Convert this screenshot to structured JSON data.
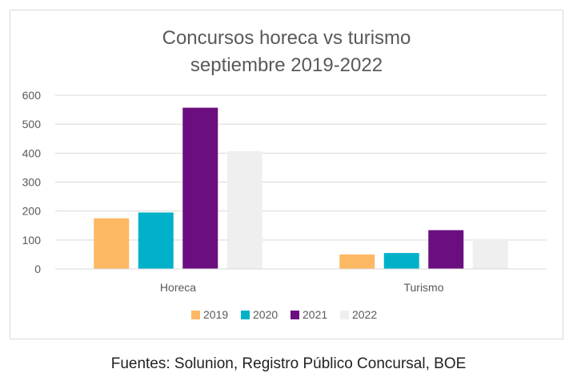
{
  "chart_data": {
    "type": "bar",
    "title": "Concursos horeca vs turismo",
    "subtitle": "septiembre 2019-2022",
    "categories": [
      "Horeca",
      "Turismo"
    ],
    "series": [
      {
        "name": "2019",
        "values": [
          175,
          50
        ],
        "color": "#FDB863"
      },
      {
        "name": "2020",
        "values": [
          195,
          55
        ],
        "color": "#00B1C9"
      },
      {
        "name": "2021",
        "values": [
          557,
          134
        ],
        "color": "#6B0F80"
      },
      {
        "name": "2022",
        "values": [
          407,
          104
        ],
        "color": "#EFEFEF"
      }
    ],
    "ylim": [
      0,
      600
    ],
    "yticks": [
      "0",
      "100",
      "200",
      "300",
      "400",
      "500",
      "600"
    ],
    "grid": true,
    "legend": "bottom"
  },
  "source": "Fuentes: Solunion, Registro Público Concursal, BOE"
}
